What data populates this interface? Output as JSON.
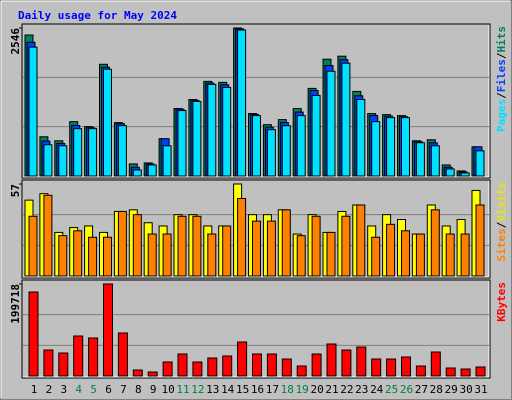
{
  "chart_data": [
    {
      "type": "bar",
      "title": "Daily usage for May 2024",
      "ylim": [
        0,
        2546
      ],
      "yticks": [
        2546
      ],
      "grid": true,
      "legend_separator": "/",
      "series": [
        {
          "name": "Hits",
          "color": "#00805c",
          "values": [
            2425,
            675,
            606,
            935,
            849,
            1922,
            918,
            208,
            225,
            641,
            1160,
            1316,
            1628,
            1611,
            2546,
            1074,
            883,
            970,
            1160,
            1507,
            2009,
            2061,
            1455,
            1074,
            1056,
            1039,
            606,
            623,
            190,
            87,
            502
          ]
        },
        {
          "name": "Files",
          "color": "#0040ff",
          "values": [
            2300,
            600,
            560,
            870,
            830,
            1870,
            900,
            150,
            205,
            641,
            1150,
            1300,
            1600,
            1570,
            2530,
            1060,
            840,
            920,
            1100,
            1470,
            1900,
            2000,
            1380,
            1040,
            1030,
            1020,
            590,
            570,
            150,
            69,
            502
          ]
        },
        {
          "name": "Pages",
          "color": "#00e0ff",
          "values": [
            2217,
            537,
            520,
            814,
            814,
            1836,
            866,
            104,
            190,
            520,
            1126,
            1282,
            1576,
            1524,
            2511,
            1039,
            797,
            866,
            1039,
            1386,
            1801,
            1940,
            1316,
            935,
            1004,
            1004,
            572,
            520,
            121,
            52,
            433
          ]
        }
      ]
    },
    {
      "type": "bar",
      "ylim": [
        0,
        57
      ],
      "yticks": [
        57
      ],
      "grid": true,
      "legend_separator": "/",
      "series": [
        {
          "name": "Visits",
          "color": "#ffff00",
          "values": [
            47,
            51,
            27,
            30,
            31,
            27,
            40,
            41,
            33,
            31,
            38,
            38,
            31,
            31,
            57,
            38,
            38,
            41,
            26,
            38,
            27,
            40,
            44,
            31,
            38,
            35,
            26,
            44,
            31,
            35,
            53
          ]
        },
        {
          "name": "Sites",
          "color": "#ff8000",
          "values": [
            37,
            50,
            25,
            28,
            24,
            24,
            40,
            38,
            26,
            26,
            37,
            37,
            26,
            31,
            48,
            34,
            34,
            41,
            25,
            37,
            27,
            37,
            44,
            24,
            32,
            28,
            26,
            41,
            26,
            26,
            44
          ]
        }
      ]
    },
    {
      "type": "bar",
      "ylim": [
        0,
        199718
      ],
      "yticks": [
        199718
      ],
      "grid": true,
      "categories": [
        "1",
        "2",
        "3",
        "4",
        "5",
        "6",
        "7",
        "8",
        "9",
        "10",
        "11",
        "12",
        "13",
        "14",
        "15",
        "16",
        "17",
        "18",
        "19",
        "20",
        "21",
        "22",
        "23",
        "24",
        "25",
        "26",
        "27",
        "28",
        "29",
        "30",
        "31"
      ],
      "category_colors": [
        "#000000",
        "#000000",
        "#000000",
        "#008040",
        "#008040",
        "#000000",
        "#000000",
        "#000000",
        "#000000",
        "#000000",
        "#008040",
        "#008040",
        "#000000",
        "#000000",
        "#000000",
        "#000000",
        "#000000",
        "#008040",
        "#008040",
        "#000000",
        "#000000",
        "#000000",
        "#000000",
        "#000000",
        "#008040",
        "#008040",
        "#000000",
        "#000000",
        "#000000",
        "#000000",
        "#000000"
      ],
      "series": [
        {
          "name": "KBytes",
          "color": "#ff0000",
          "values": [
            182356,
            56443,
            49930,
            86834,
            82493,
            199718,
            93347,
            13025,
            8683,
            30392,
            47759,
            30392,
            39075,
            43417,
            73810,
            47759,
            47759,
            36905,
            21708,
            47759,
            69468,
            56443,
            62955,
            36905,
            36905,
            41246,
            21708,
            52101,
            17367,
            15196,
            19538
          ]
        }
      ]
    }
  ]
}
